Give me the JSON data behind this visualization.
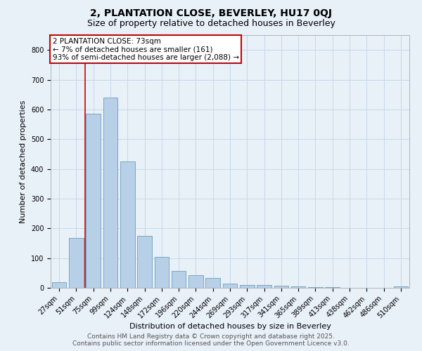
{
  "title_line1": "2, PLANTATION CLOSE, BEVERLEY, HU17 0QJ",
  "title_line2": "Size of property relative to detached houses in Beverley",
  "xlabel": "Distribution of detached houses by size in Beverley",
  "ylabel": "Number of detached properties",
  "bar_labels": [
    "27sqm",
    "51sqm",
    "75sqm",
    "99sqm",
    "124sqm",
    "148sqm",
    "172sqm",
    "196sqm",
    "220sqm",
    "244sqm",
    "269sqm",
    "293sqm",
    "317sqm",
    "341sqm",
    "365sqm",
    "389sqm",
    "413sqm",
    "438sqm",
    "462sqm",
    "486sqm",
    "510sqm"
  ],
  "bar_values": [
    20,
    168,
    585,
    640,
    425,
    175,
    105,
    57,
    42,
    32,
    15,
    10,
    10,
    8,
    5,
    3,
    2,
    1,
    0,
    0,
    5
  ],
  "bar_color": "#b8cfe8",
  "bar_edgecolor": "#6a9fc0",
  "vline_x_index": 2,
  "annotation_box_text": "2 PLANTATION CLOSE: 73sqm\n← 7% of detached houses are smaller (161)\n93% of semi-detached houses are larger (2,088) →",
  "annotation_box_facecolor": "#ffffff",
  "annotation_box_edgecolor": "#cc0000",
  "vline_color": "#cc0000",
  "ylim": [
    0,
    850
  ],
  "yticks": [
    0,
    100,
    200,
    300,
    400,
    500,
    600,
    700,
    800
  ],
  "grid_color": "#c8d8e8",
  "background_color": "#e8f0f8",
  "footer_line1": "Contains HM Land Registry data © Crown copyright and database right 2025.",
  "footer_line2": "Contains public sector information licensed under the Open Government Licence v3.0.",
  "title_fontsize": 10,
  "subtitle_fontsize": 9,
  "tick_fontsize": 7,
  "label_fontsize": 8,
  "annotation_fontsize": 7.5,
  "footer_fontsize": 6.5
}
